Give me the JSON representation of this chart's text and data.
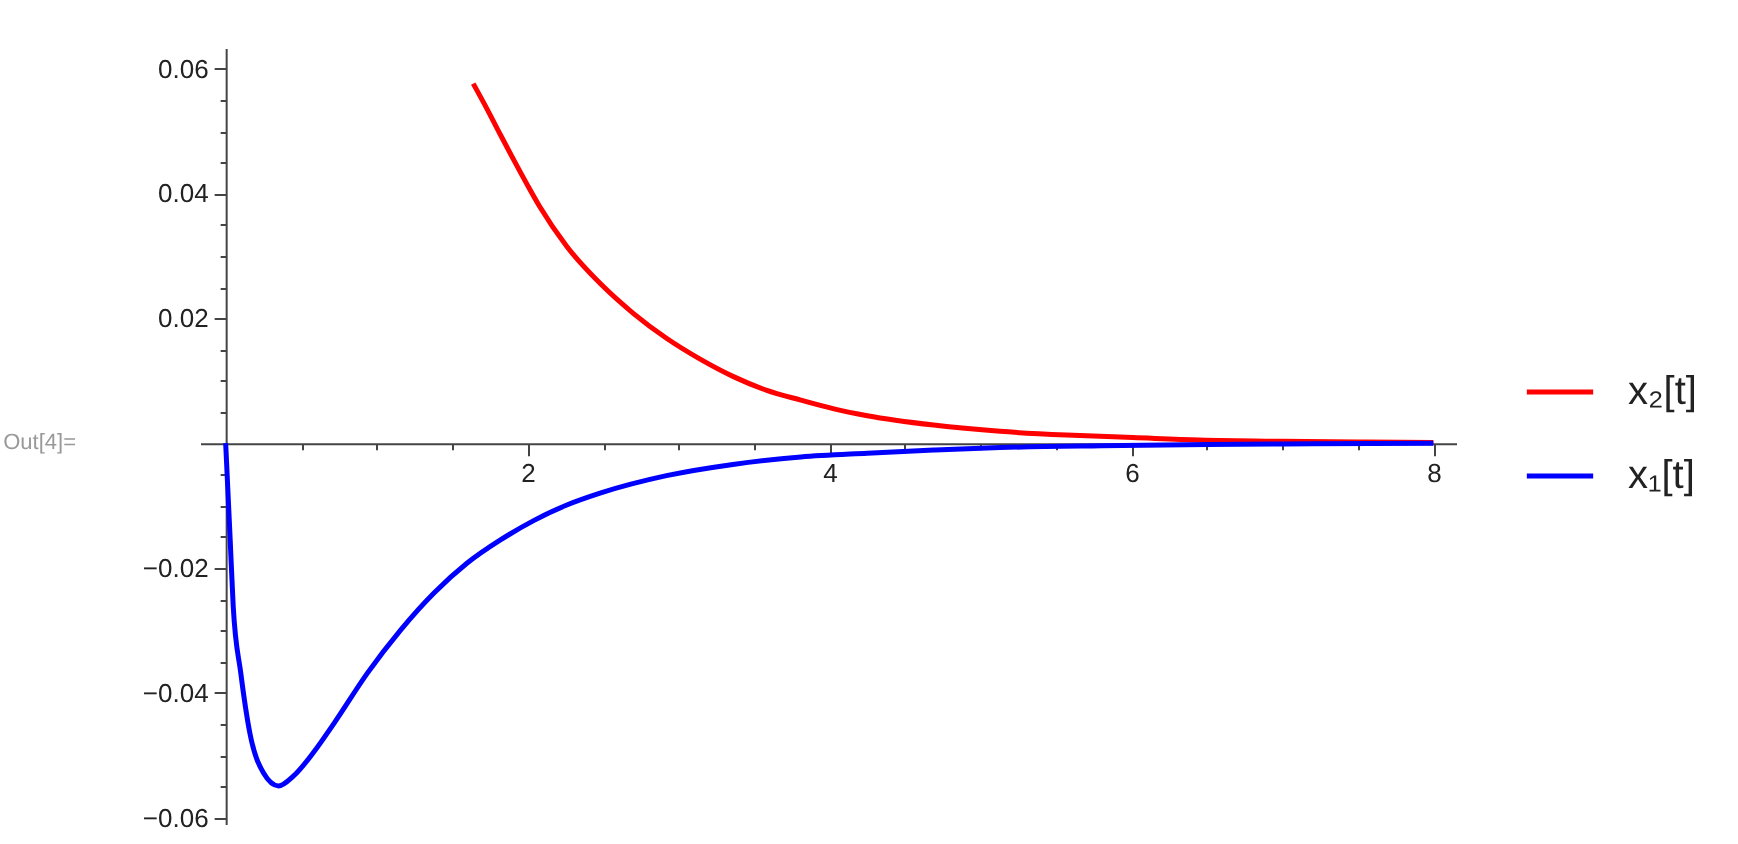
{
  "chart_data": {
    "type": "line",
    "annotations": [
      "Out[4]="
    ],
    "xlim": [
      -0.17,
      8.15
    ],
    "ylim": [
      -0.061,
      0.0633
    ],
    "xticks": [
      {
        "value": 0.5,
        "label": null
      },
      {
        "value": 1,
        "label": null
      },
      {
        "value": 1.5,
        "label": null
      },
      2,
      {
        "value": 2.5,
        "label": null
      },
      {
        "value": 3,
        "label": null
      },
      {
        "value": 3.5,
        "label": null
      },
      4,
      {
        "value": 4.5,
        "label": null
      },
      {
        "value": 5,
        "label": null
      },
      {
        "value": 5.5,
        "label": null
      },
      6,
      {
        "value": 6.5,
        "label": null
      },
      {
        "value": 7,
        "label": null
      },
      {
        "value": 7.5,
        "label": null
      },
      8
    ],
    "yticks": [
      {
        "value": -0.06,
        "label": "−0.06"
      },
      {
        "value": -0.055,
        "label": null
      },
      {
        "value": -0.05,
        "label": null
      },
      {
        "value": -0.045,
        "label": null
      },
      {
        "value": -0.04,
        "label": "−0.04"
      },
      {
        "value": -0.035,
        "label": null
      },
      {
        "value": -0.03,
        "label": null
      },
      {
        "value": -0.025,
        "label": null
      },
      {
        "value": -0.02,
        "label": "−0.02"
      },
      {
        "value": -0.015,
        "label": null
      },
      {
        "value": -0.01,
        "label": null
      },
      {
        "value": -0.005,
        "label": null
      },
      {
        "value": 0.005,
        "label": null
      },
      {
        "value": 0.01,
        "label": null
      },
      {
        "value": 0.015,
        "label": null
      },
      0.02,
      {
        "value": 0.025,
        "label": null
      },
      {
        "value": 0.03,
        "label": null
      },
      {
        "value": 0.035,
        "label": null
      },
      0.04,
      {
        "value": 0.045,
        "label": null
      },
      {
        "value": 0.05,
        "label": null
      },
      {
        "value": 0.055,
        "label": null
      },
      0.06
    ],
    "legend": "right",
    "series": [
      {
        "name": "x₂[t]",
        "color": "#ff0000",
        "x": [
          1.64,
          1.73,
          1.82,
          1.91,
          2.0,
          2.08,
          2.26,
          2.48,
          2.7,
          2.92,
          3.14,
          3.36,
          3.58,
          3.81,
          4.03,
          4.25,
          4.69,
          5.13,
          5.57,
          6.01,
          6.45,
          7.0,
          7.5,
          8.0
        ],
        "values": [
          0.0576,
          0.0536,
          0.0494,
          0.0453,
          0.0413,
          0.0379,
          0.0315,
          0.0256,
          0.0208,
          0.0168,
          0.0135,
          0.0107,
          0.0085,
          0.0069,
          0.0055,
          0.0044,
          0.0029,
          0.0019,
          0.0013,
          0.0009,
          0.0005,
          0.0003,
          0.0002,
          0.0001
        ]
      },
      {
        "name": "x₁[t]",
        "color": "#0000ff",
        "x": [
          0,
          0.03,
          0.05,
          0.1,
          0.16,
          0.25,
          0.35,
          0.45,
          0.58,
          0.72,
          0.94,
          1.16,
          1.38,
          1.6,
          1.82,
          2.04,
          2.26,
          2.48,
          2.92,
          3.36,
          3.81,
          4.25,
          4.69,
          5.13,
          5.8,
          6.5,
          7.2,
          8.0
        ],
        "values": [
          0,
          -0.0155,
          -0.0261,
          -0.0368,
          -0.0464,
          -0.0528,
          -0.0549,
          -0.0533,
          -0.0496,
          -0.0448,
          -0.0368,
          -0.0299,
          -0.024,
          -0.0192,
          -0.0155,
          -0.0124,
          -0.0099,
          -0.008,
          -0.0052,
          -0.0034,
          -0.0022,
          -0.0016,
          -0.0011,
          -0.0007,
          -0.0004,
          -0.0002,
          -0.0001,
          0
        ]
      }
    ]
  }
}
